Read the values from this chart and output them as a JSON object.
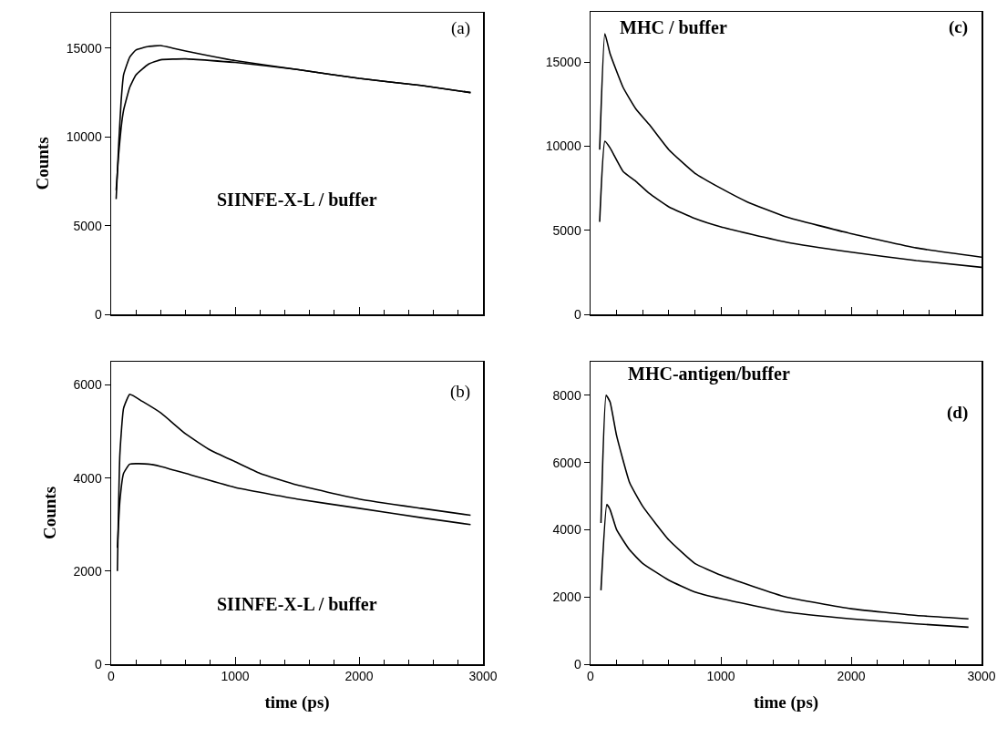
{
  "chart_data": [
    {
      "type": "line",
      "ylabel": "Counts",
      "annotations": [
        "(a)",
        "SIINFE-X-L / buffer"
      ],
      "xlim": [
        0,
        3000
      ],
      "xticks": [
        0,
        1000,
        2000,
        3000
      ],
      "ylim": [
        0,
        17000
      ],
      "yticks": [
        0,
        5000,
        10000,
        15000
      ],
      "tick_labels": "y",
      "series": [
        {
          "color": "#000000",
          "x": [
            40,
            60,
            80,
            100,
            150,
            200,
            300,
            400,
            500,
            700,
            1000,
            1500,
            2000,
            2500,
            2900
          ],
          "values": [
            6500,
            9500,
            12000,
            13500,
            14500,
            14900,
            15100,
            15150,
            15000,
            14700,
            14300,
            13800,
            13300,
            12900,
            12500
          ]
        },
        {
          "color": "#000000",
          "x": [
            40,
            60,
            80,
            100,
            150,
            200,
            300,
            400,
            600,
            1000,
            1500,
            2000,
            2500,
            2900
          ],
          "values": [
            7000,
            9000,
            10500,
            11500,
            12800,
            13500,
            14100,
            14350,
            14400,
            14200,
            13800,
            13300,
            12900,
            12500
          ]
        }
      ]
    },
    {
      "type": "line",
      "ylabel": "Counts",
      "xlabel": "time (ps)",
      "annotations": [
        "(b)",
        "SIINFE-X-L / buffer"
      ],
      "xlim": [
        0,
        3000
      ],
      "xticks": [
        0,
        1000,
        2000,
        3000
      ],
      "ylim": [
        0,
        6500
      ],
      "yticks": [
        0,
        2000,
        4000,
        6000
      ],
      "series": [
        {
          "color": "#000000",
          "x": [
            50,
            70,
            100,
            150,
            250,
            400,
            600,
            800,
            1000,
            1200,
            1500,
            2000,
            2500,
            2900
          ],
          "values": [
            2000,
            4500,
            5500,
            5800,
            5650,
            5400,
            4950,
            4600,
            4350,
            4100,
            3850,
            3550,
            3350,
            3200
          ]
        },
        {
          "color": "#000000",
          "x": [
            50,
            70,
            100,
            150,
            300,
            400,
            600,
            1000,
            1500,
            2000,
            2500,
            2900
          ],
          "values": [
            2500,
            3500,
            4100,
            4300,
            4300,
            4250,
            4100,
            3800,
            3550,
            3350,
            3150,
            3000
          ]
        }
      ]
    },
    {
      "type": "line",
      "annotations": [
        "(c)",
        "MHC / buffer"
      ],
      "xlim": [
        0,
        3000
      ],
      "xticks": [
        0,
        1000,
        2000,
        3000
      ],
      "ylim": [
        0,
        18000
      ],
      "yticks": [
        0,
        5000,
        10000,
        15000
      ],
      "tick_labels": "y",
      "series": [
        {
          "color": "#000000",
          "x": [
            70,
            110,
            150,
            250,
            350,
            450,
            600,
            800,
            1000,
            1200,
            1500,
            2000,
            2500,
            3000
          ],
          "values": [
            9800,
            16700,
            15500,
            13500,
            12200,
            11300,
            9800,
            8400,
            7500,
            6700,
            5800,
            4800,
            3950,
            3400
          ]
        },
        {
          "color": "#000000",
          "x": [
            70,
            110,
            150,
            250,
            350,
            450,
            600,
            800,
            1000,
            1500,
            2000,
            2500,
            3000
          ],
          "values": [
            5500,
            10300,
            9900,
            8500,
            7900,
            7200,
            6400,
            5700,
            5200,
            4300,
            3700,
            3200,
            2800
          ]
        }
      ]
    },
    {
      "type": "line",
      "xlabel": "time (ps)",
      "annotations": [
        "(d)",
        "MHC-antigen/buffer"
      ],
      "xlim": [
        0,
        3000
      ],
      "xticks": [
        0,
        1000,
        2000,
        3000
      ],
      "ylim": [
        0,
        9000
      ],
      "yticks": [
        0,
        2000,
        4000,
        6000,
        8000
      ],
      "series": [
        {
          "color": "#000000",
          "x": [
            80,
            120,
            150,
            200,
            300,
            400,
            600,
            800,
            1000,
            1500,
            2000,
            2500,
            2900
          ],
          "values": [
            4200,
            8000,
            7800,
            6800,
            5400,
            4700,
            3700,
            3000,
            2650,
            2000,
            1650,
            1450,
            1350
          ]
        },
        {
          "color": "#000000",
          "x": [
            80,
            125,
            150,
            200,
            300,
            400,
            600,
            800,
            1000,
            1500,
            2000,
            2500,
            2900
          ],
          "values": [
            2200,
            4750,
            4600,
            4000,
            3400,
            3000,
            2500,
            2150,
            1950,
            1550,
            1350,
            1200,
            1100
          ]
        }
      ]
    }
  ]
}
